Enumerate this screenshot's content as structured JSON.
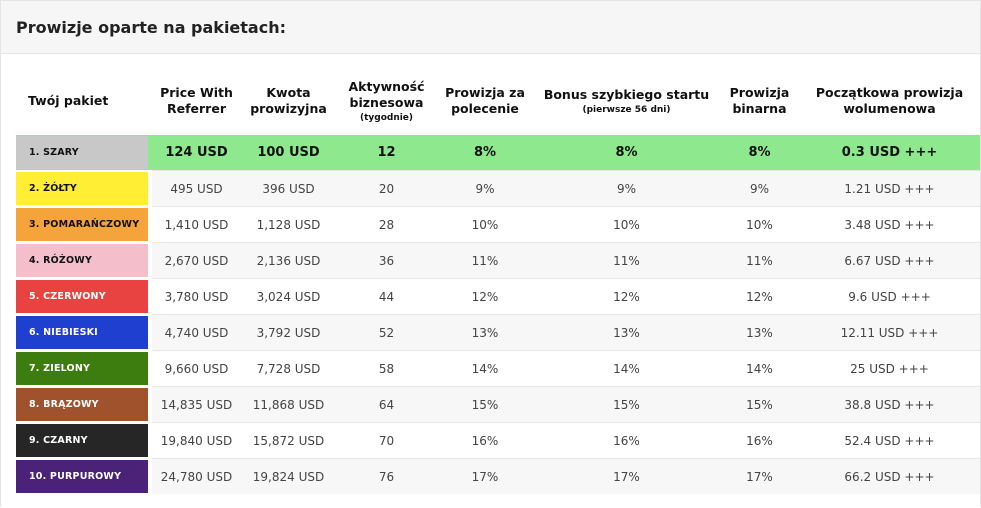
{
  "panel": {
    "title": "Prowizje oparte na pakietach:"
  },
  "headers": {
    "package": "Twój pakiet",
    "price": "Price With Referrer",
    "commission_amount": "Kwota prowizyjna",
    "activity": "Aktywność biznesowa",
    "activity_sub": "(tygodnie)",
    "referral": "Prowizja za polecenie",
    "fast_start": "Bonus szybkiego startu",
    "fast_start_sub": "(pierwsze 56 dni)",
    "binary": "Prowizja binarna",
    "volume": "Początkowa prowizja wolumenowa"
  },
  "rows": [
    {
      "name": "1. SZARY",
      "color": "#c8c8c8",
      "text_color": "#111111",
      "price": "124 USD",
      "commission": "100 USD",
      "activity": "12",
      "referral": "8%",
      "fast_start": "8%",
      "binary": "8%",
      "volume": "0.3 USD +++"
    },
    {
      "name": "2. ŻÓŁTY",
      "color": "#ffee33",
      "text_color": "#111111",
      "price": "495 USD",
      "commission": "396 USD",
      "activity": "20",
      "referral": "9%",
      "fast_start": "9%",
      "binary": "9%",
      "volume": "1.21 USD +++"
    },
    {
      "name": "3. POMARAŃCZOWY",
      "color": "#f5a43c",
      "text_color": "#111111",
      "price": "1,410 USD",
      "commission": "1,128 USD",
      "activity": "28",
      "referral": "10%",
      "fast_start": "10%",
      "binary": "10%",
      "volume": "3.48 USD +++"
    },
    {
      "name": "4. RÓŻOWY",
      "color": "#f4bfcb",
      "text_color": "#111111",
      "price": "2,670 USD",
      "commission": "2,136 USD",
      "activity": "36",
      "referral": "11%",
      "fast_start": "11%",
      "binary": "11%",
      "volume": "6.67 USD +++"
    },
    {
      "name": "5. CZERWONY",
      "color": "#e84340",
      "text_color": "#ffffff",
      "price": "3,780 USD",
      "commission": "3,024 USD",
      "activity": "44",
      "referral": "12%",
      "fast_start": "12%",
      "binary": "12%",
      "volume": "9.6 USD +++"
    },
    {
      "name": "6. NIEBIESKI",
      "color": "#1f3fd0",
      "text_color": "#ffffff",
      "price": "4,740 USD",
      "commission": "3,792 USD",
      "activity": "52",
      "referral": "13%",
      "fast_start": "13%",
      "binary": "13%",
      "volume": "12.11 USD +++"
    },
    {
      "name": "7. ZIELONY",
      "color": "#3d7d10",
      "text_color": "#ffffff",
      "price": "9,660 USD",
      "commission": "7,728 USD",
      "activity": "58",
      "referral": "14%",
      "fast_start": "14%",
      "binary": "14%",
      "volume": "25 USD +++"
    },
    {
      "name": "8. BRĄZOWY",
      "color": "#a0522d",
      "text_color": "#ffffff",
      "price": "14,835 USD",
      "commission": "11,868 USD",
      "activity": "64",
      "referral": "15%",
      "fast_start": "15%",
      "binary": "15%",
      "volume": "38.8 USD +++"
    },
    {
      "name": "9. CZARNY",
      "color": "#262626",
      "text_color": "#ffffff",
      "price": "19,840 USD",
      "commission": "15,872 USD",
      "activity": "70",
      "referral": "16%",
      "fast_start": "16%",
      "binary": "16%",
      "volume": "52.4 USD +++"
    },
    {
      "name": "10. PURPUROWY",
      "color": "#4a2278",
      "text_color": "#ffffff",
      "price": "24,780 USD",
      "commission": "19,824 USD",
      "activity": "76",
      "referral": "17%",
      "fast_start": "17%",
      "binary": "17%",
      "volume": "66.2 USD +++"
    }
  ],
  "highlight_color": "#8ee88e"
}
